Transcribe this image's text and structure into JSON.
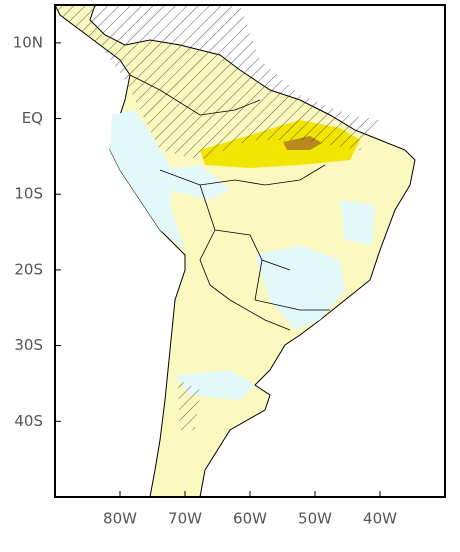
{
  "map": {
    "xlim": [
      -90,
      -30
    ],
    "ylim": [
      -50,
      15
    ],
    "xticks": [
      {
        "value": -80,
        "label": "80W"
      },
      {
        "value": -70,
        "label": "70W"
      },
      {
        "value": -60,
        "label": "60W"
      },
      {
        "value": -50,
        "label": "50W"
      },
      {
        "value": -40,
        "label": "40W"
      }
    ],
    "yticks": [
      {
        "value": 10,
        "label": "10N"
      },
      {
        "value": 0,
        "label": "EQ"
      },
      {
        "value": -10,
        "label": "10S"
      },
      {
        "value": -20,
        "label": "20S"
      },
      {
        "value": -30,
        "label": "30S"
      },
      {
        "value": -40,
        "label": "40S"
      }
    ]
  }
}
